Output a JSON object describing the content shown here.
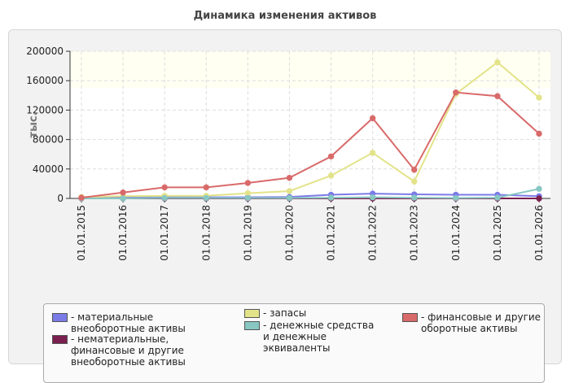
{
  "chart_data": {
    "type": "line",
    "title": "Динамика изменения активов",
    "ylabel": "тыс.",
    "xlabel": "",
    "ylim": [
      0,
      200000
    ],
    "yticks": [
      "0",
      "40000",
      "80000",
      "120000",
      "160000",
      "200000"
    ],
    "categories": [
      "01.01.2015",
      "01.01.2016",
      "01.01.2017",
      "01.01.2018",
      "01.01.2019",
      "01.01.2020",
      "01.01.2021",
      "01.01.2022",
      "01.01.2023",
      "01.01.2024",
      "01.01.2025",
      "01.01.2026"
    ],
    "legend_position": "bottom",
    "series": [
      {
        "name": "материальные внеоборотные активы",
        "color": "#7b7be8",
        "values": [
          1000,
          1500,
          2000,
          1500,
          1500,
          2000,
          5000,
          6500,
          5500,
          5000,
          5000,
          3000
        ]
      },
      {
        "name": "нематериальные, финансовые и другие внеоборотные активы",
        "color": "#7a1f4f",
        "values": [
          0,
          0,
          0,
          0,
          0,
          0,
          0,
          0,
          0,
          0,
          0,
          0
        ]
      },
      {
        "name": "запасы",
        "color": "#e3e38a",
        "values": [
          2000,
          3000,
          3500,
          3500,
          7000,
          10000,
          31000,
          62000,
          23000,
          142000,
          185000,
          137000
        ]
      },
      {
        "name": "денежные средства и денежные эквиваленты",
        "color": "#88c7c2",
        "values": [
          0,
          0,
          500,
          500,
          500,
          500,
          1000,
          1500,
          1000,
          500,
          1000,
          13000
        ]
      },
      {
        "name": "финансовые и другие оборотные активы",
        "color": "#d96a6a",
        "values": [
          1000,
          8000,
          15000,
          15000,
          21000,
          28000,
          57000,
          109000,
          39000,
          144000,
          139000,
          88000
        ]
      }
    ]
  }
}
